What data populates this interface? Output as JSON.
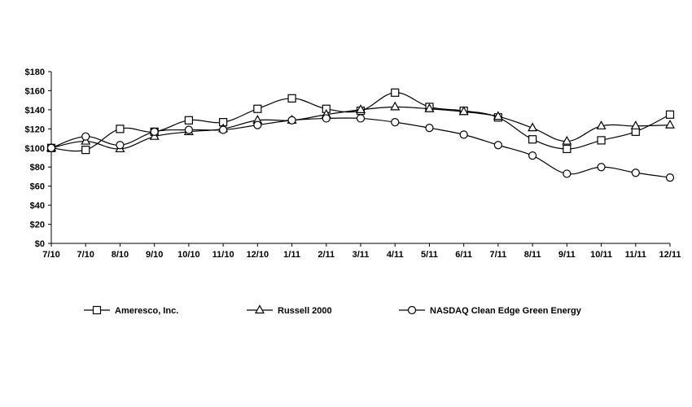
{
  "chart_data": {
    "type": "line",
    "categories": [
      "7/10",
      "7/10",
      "8/10",
      "9/10",
      "10/10",
      "11/10",
      "12/10",
      "1/11",
      "2/11",
      "3/11",
      "4/11",
      "5/11",
      "6/11",
      "7/11",
      "8/11",
      "9/11",
      "10/11",
      "11/11",
      "12/11"
    ],
    "ylim": [
      0,
      180
    ],
    "yticks": [
      0,
      20,
      40,
      60,
      80,
      100,
      120,
      140,
      160,
      180
    ],
    "ytick_labels": [
      "$0",
      "$20",
      "$40",
      "$60",
      "$80",
      "$100",
      "$120",
      "$140",
      "$160",
      "$180"
    ],
    "grid": false,
    "legend_position": "bottom",
    "series": [
      {
        "name": "Ameresco, Inc.",
        "marker": "square",
        "values": [
          100,
          98,
          120,
          117,
          129,
          127,
          141,
          152,
          141,
          139,
          158,
          143,
          139,
          132,
          109,
          99,
          108,
          117,
          135
        ]
      },
      {
        "name": "Russell 2000",
        "marker": "triangle",
        "values": [
          100,
          107,
          99,
          112,
          117,
          120,
          129,
          129,
          135,
          140,
          143,
          141,
          138,
          133,
          121,
          107,
          123,
          123,
          124
        ]
      },
      {
        "name": "NASDAQ Clean Edge Green Energy",
        "marker": "circle",
        "values": [
          100,
          112,
          103,
          117,
          119,
          119,
          124,
          129,
          131,
          131,
          127,
          121,
          114,
          103,
          92,
          73,
          80,
          74,
          69
        ]
      }
    ],
    "colors": {
      "line": "#000000",
      "marker_fill": "#ffffff"
    }
  }
}
